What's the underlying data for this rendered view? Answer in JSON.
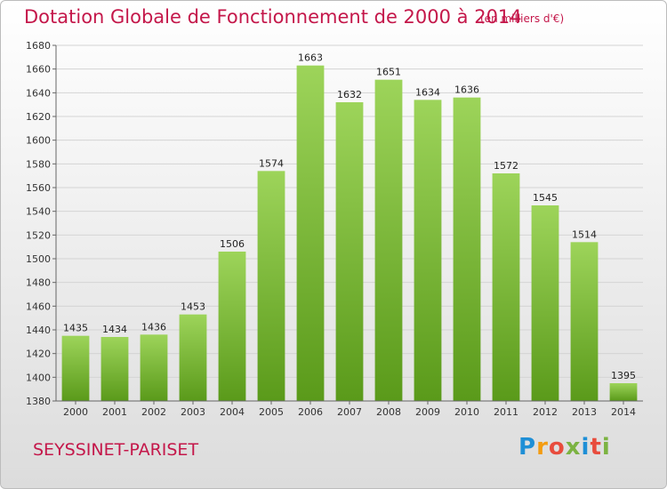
{
  "header": {
    "title": "Dotation Globale de Fonctionnement de 2000 à 2014",
    "subtitle": "(en milliers d'€)"
  },
  "footer": {
    "municipality": "SEYSSINET-PARISET",
    "brand_letters": [
      "P",
      "r",
      "o",
      "x",
      "i",
      "t",
      "i"
    ]
  },
  "colors": {
    "title": "#c4174a",
    "bar_top": "#9dd45a",
    "bar_bottom": "#5a9a1a",
    "brand_letters": [
      "#1f8fd6",
      "#f39c12",
      "#e84c3d",
      "#7cb342",
      "#1f8fd6",
      "#e84c3d",
      "#7cb342"
    ]
  },
  "chart_data": {
    "type": "bar",
    "title": "Dotation Globale de Fonctionnement de 2000 à 2014",
    "subtitle": "(en milliers d'€)",
    "xlabel": "",
    "ylabel": "",
    "categories": [
      "2000",
      "2001",
      "2002",
      "2003",
      "2004",
      "2005",
      "2006",
      "2007",
      "2008",
      "2009",
      "2010",
      "2011",
      "2012",
      "2013",
      "2014"
    ],
    "values": [
      1435,
      1434,
      1436,
      1453,
      1506,
      1574,
      1663,
      1632,
      1651,
      1634,
      1636,
      1572,
      1545,
      1514,
      1395
    ],
    "ylim": [
      1380,
      1680
    ],
    "yticks": [
      1380,
      1400,
      1420,
      1440,
      1460,
      1480,
      1500,
      1520,
      1540,
      1560,
      1580,
      1600,
      1620,
      1640,
      1660,
      1680
    ],
    "grid": true,
    "legend": "none"
  }
}
